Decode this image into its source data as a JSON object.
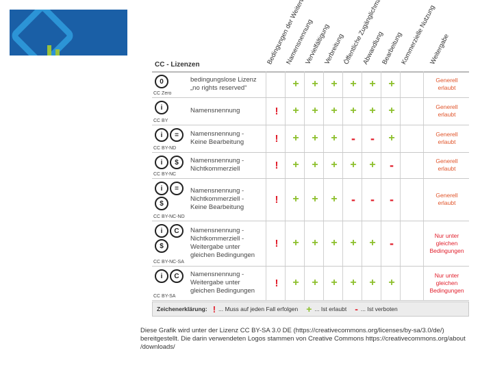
{
  "colors": {
    "logo_bg": "#1a5fa6",
    "logo_square": "#2c94d6",
    "logo_accent": "#9ac23c",
    "plus": "#8cbf2a",
    "red": "#e11d2a"
  },
  "logo": {
    "icon": "diamond-logo-icon"
  },
  "table": {
    "title": "CC - Lizenzen",
    "columns": [
      "Bedingungen der Weiterverw.",
      "Namensnennung",
      "Vervielfältigung",
      "Verbreitung",
      "Öffentliche Zugänglichmachung",
      "Abwandlung",
      "Bearbeitung",
      "Kommerzielle Nutzung",
      "Weitergabe"
    ],
    "rows": [
      {
        "code": "CC Zero",
        "icons": [
          "0"
        ],
        "label": "bedingungslose Lizenz\n„no rights reserved“",
        "cells": [
          "",
          "+",
          "+",
          "+",
          "+",
          "+",
          "+"
        ],
        "verdict": "Generell\nerlaubt",
        "verdict_color": "#e0542a"
      },
      {
        "code": "CC BY",
        "icons": [
          "i"
        ],
        "label": "Namensnennung",
        "cells": [
          "!",
          "+",
          "+",
          "+",
          "+",
          "+",
          "+"
        ],
        "verdict": "Generell\nerlaubt",
        "verdict_color": "#e0542a"
      },
      {
        "code": "CC BY-ND",
        "icons": [
          "i",
          "="
        ],
        "label": "Namensnennung -\nKeine Bearbeitung",
        "cells": [
          "!",
          "+",
          "+",
          "+",
          "-",
          "-",
          "+"
        ],
        "verdict": "Generell\nerlaubt",
        "verdict_color": "#e0542a"
      },
      {
        "code": "CC BY-NC",
        "icons": [
          "i",
          "$"
        ],
        "label": "Namensnennung -\nNichtkommerziell",
        "cells": [
          "!",
          "+",
          "+",
          "+",
          "+",
          "+",
          "-"
        ],
        "verdict": "Generell\nerlaubt",
        "verdict_color": "#e0542a"
      },
      {
        "code": "CC BY-NC-ND",
        "icons": [
          "i",
          "=",
          "$"
        ],
        "label": "Namensnennung -\nNichtkommerziell -\nKeine Bearbeitung",
        "cells": [
          "!",
          "+",
          "+",
          "+",
          "-",
          "-",
          "-"
        ],
        "verdict": "Generell\nerlaubt",
        "verdict_color": "#e0542a"
      },
      {
        "code": "CC BY-NC-SA",
        "icons": [
          "i",
          "C",
          "$"
        ],
        "label": "Namensnennung -\nNichtkommerziell -\nWeitergabe unter\ngleichen Bedingungen",
        "cells": [
          "!",
          "+",
          "+",
          "+",
          "+",
          "+",
          "-"
        ],
        "verdict": "Nur unter\ngleichen\nBedingungen",
        "verdict_color": "#e11d2a"
      },
      {
        "code": "CC BY-SA",
        "icons": [
          "i",
          "C"
        ],
        "label": "Namensnennung -\nWeitergabe unter\ngleichen Bedingungen",
        "cells": [
          "!",
          "+",
          "+",
          "+",
          "+",
          "+",
          "+"
        ],
        "verdict": "Nur unter\ngleichen\nBedingungen",
        "verdict_color": "#e11d2a"
      }
    ]
  },
  "legend": {
    "label": "Zeichenerklärung:",
    "must_symbol": "!",
    "must_text": "... Muss auf jeden Fall erfolgen",
    "plus_symbol": "+",
    "plus_text": "... Ist erlaubt",
    "minus_symbol": "-",
    "minus_text": "... Ist verboten"
  },
  "footer": {
    "text": "Diese Grafik wird unter der Lizenz CC BY-SA 3.0 DE (https://creativecommons.org/licenses/by-sa/3.0/de/) bereitgestellt. Die darin verwendeten Logos stammen von Creative Commons https://creativecommons.org/about /downloads/"
  }
}
